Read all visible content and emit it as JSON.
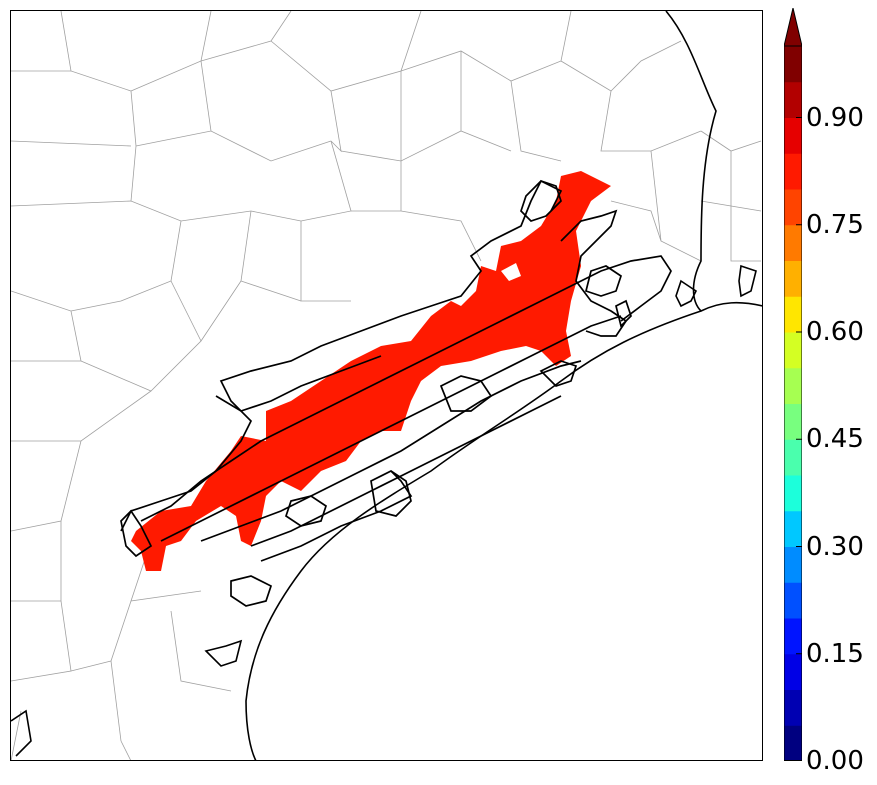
{
  "colorbar": {
    "ticks": [
      {
        "value": 0.0,
        "label": "0.00"
      },
      {
        "value": 0.15,
        "label": "0.15"
      },
      {
        "value": 0.3,
        "label": "0.30"
      },
      {
        "value": 0.45,
        "label": "0.45"
      },
      {
        "value": 0.6,
        "label": "0.60"
      },
      {
        "value": 0.75,
        "label": "0.75"
      },
      {
        "value": 0.9,
        "label": "0.90"
      }
    ],
    "range": [
      0.0,
      1.0
    ],
    "extend": "max",
    "levels": [
      "#000080",
      "#0000b2",
      "#0000e6",
      "#0014ff",
      "#0050ff",
      "#008cff",
      "#00c8ff",
      "#1cffdb",
      "#4affad",
      "#78ff7f",
      "#a6ff51",
      "#d4ff23",
      "#ffe600",
      "#ffb000",
      "#ff7a00",
      "#ff4400",
      "#ff1a00",
      "#e60000",
      "#b20000",
      "#800000"
    ],
    "extend_color": "#800000"
  },
  "map": {
    "shaded_field_value": 0.85,
    "shaded_color": "#ff1a00",
    "contour_color": "#000000",
    "county_line_color": "#a0a0a0"
  }
}
